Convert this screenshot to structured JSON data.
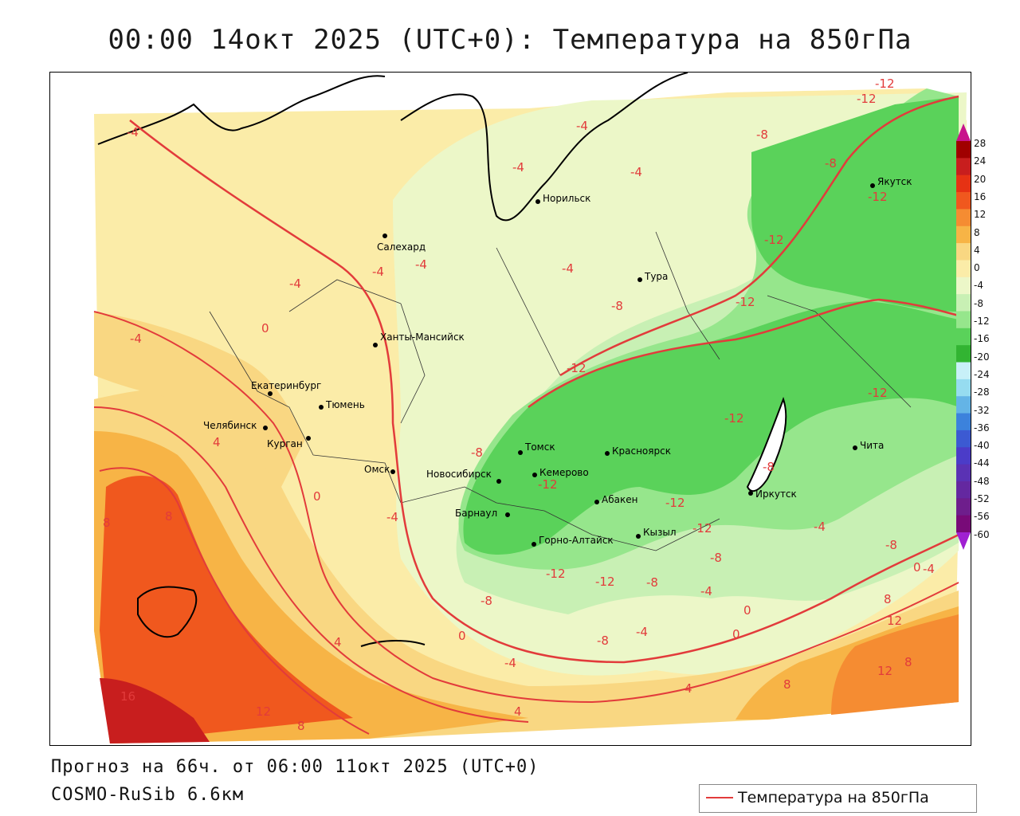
{
  "title": "00:00 14окт 2025 (UTC+0): Температура на 850гПа",
  "forecast_line": "Прогноз на 66ч. от 06:00 11окт 2025 (UTC+0)",
  "model_line": "COSMO-RuSib 6.6км",
  "legend": {
    "label": "Температура на 850гПа",
    "line_color": "#e23b3b"
  },
  "colorbar": {
    "ticks": [
      "28",
      "24",
      "20",
      "16",
      "12",
      "8",
      "4",
      "0",
      "-4",
      "-8",
      "-12",
      "-16",
      "-20",
      "-24",
      "-28",
      "-32",
      "-36",
      "-40",
      "-44",
      "-48",
      "-52",
      "-56",
      "-60"
    ],
    "colors": [
      "#a00000",
      "#c81e1e",
      "#e63214",
      "#f0581e",
      "#f58c32",
      "#f7b446",
      "#f9d782",
      "#fbeca8",
      "#ecf7c8",
      "#c8f0b4",
      "#96e68c",
      "#5ad25a",
      "#32b432",
      "#c8f0f8",
      "#96dcf0",
      "#64b4e6",
      "#3c82dc",
      "#3c5ad2",
      "#4b3cc8",
      "#5a32b4",
      "#6428a0",
      "#6e1e8c",
      "#780a78"
    ],
    "top_color": "#c8148c",
    "bottom_color": "#a020d2"
  },
  "cities": [
    {
      "name": "Норильск"
    },
    {
      "name": "Якутск"
    },
    {
      "name": "Салехард"
    },
    {
      "name": "Тура"
    },
    {
      "name": "Ханты-Мансийск"
    },
    {
      "name": "Екатеринбург"
    },
    {
      "name": "Тюмень"
    },
    {
      "name": "Челябинск"
    },
    {
      "name": "Курган"
    },
    {
      "name": "Омск"
    },
    {
      "name": "Новосибирск"
    },
    {
      "name": "Томск"
    },
    {
      "name": "Кемерово"
    },
    {
      "name": "Красноярск"
    },
    {
      "name": "Барнаул"
    },
    {
      "name": "Абакен"
    },
    {
      "name": "Горно-Алтайск"
    },
    {
      "name": "Кызыл"
    },
    {
      "name": "Иркутск"
    },
    {
      "name": "Чита"
    }
  ],
  "isotherm_labels": [
    {
      "text": "-12"
    },
    {
      "text": "-12"
    },
    {
      "text": "-4"
    },
    {
      "text": "-4"
    },
    {
      "text": "-4"
    },
    {
      "text": "-4"
    },
    {
      "text": "-8"
    },
    {
      "text": "-8"
    },
    {
      "text": "-12"
    },
    {
      "text": "-12"
    },
    {
      "text": "-4"
    },
    {
      "text": "-4"
    },
    {
      "text": "-4"
    },
    {
      "text": "-4"
    },
    {
      "text": "-8"
    },
    {
      "text": "-12"
    },
    {
      "text": "-4"
    },
    {
      "text": "0"
    },
    {
      "text": "-12"
    },
    {
      "text": "-12"
    },
    {
      "text": "-12"
    },
    {
      "text": "-8"
    },
    {
      "text": "4"
    },
    {
      "text": "-8"
    },
    {
      "text": "-12"
    },
    {
      "text": "0"
    },
    {
      "text": "-4"
    },
    {
      "text": "-12"
    },
    {
      "text": "-12"
    },
    {
      "text": "-4"
    },
    {
      "text": "-8"
    },
    {
      "text": "8"
    },
    {
      "text": "8"
    },
    {
      "text": "-8"
    },
    {
      "text": "-12"
    },
    {
      "text": "-12"
    },
    {
      "text": "-8"
    },
    {
      "text": "-4"
    },
    {
      "text": "0"
    },
    {
      "text": "-4"
    },
    {
      "text": "8"
    },
    {
      "text": "12"
    },
    {
      "text": "-8"
    },
    {
      "text": "0"
    },
    {
      "text": "-8"
    },
    {
      "text": "-4"
    },
    {
      "text": "0"
    },
    {
      "text": "0"
    },
    {
      "text": "4"
    },
    {
      "text": "-4"
    },
    {
      "text": "12"
    },
    {
      "text": "8"
    },
    {
      "text": "16"
    },
    {
      "text": "12"
    },
    {
      "text": "4"
    },
    {
      "text": "8"
    },
    {
      "text": "8"
    },
    {
      "text": "4"
    }
  ]
}
